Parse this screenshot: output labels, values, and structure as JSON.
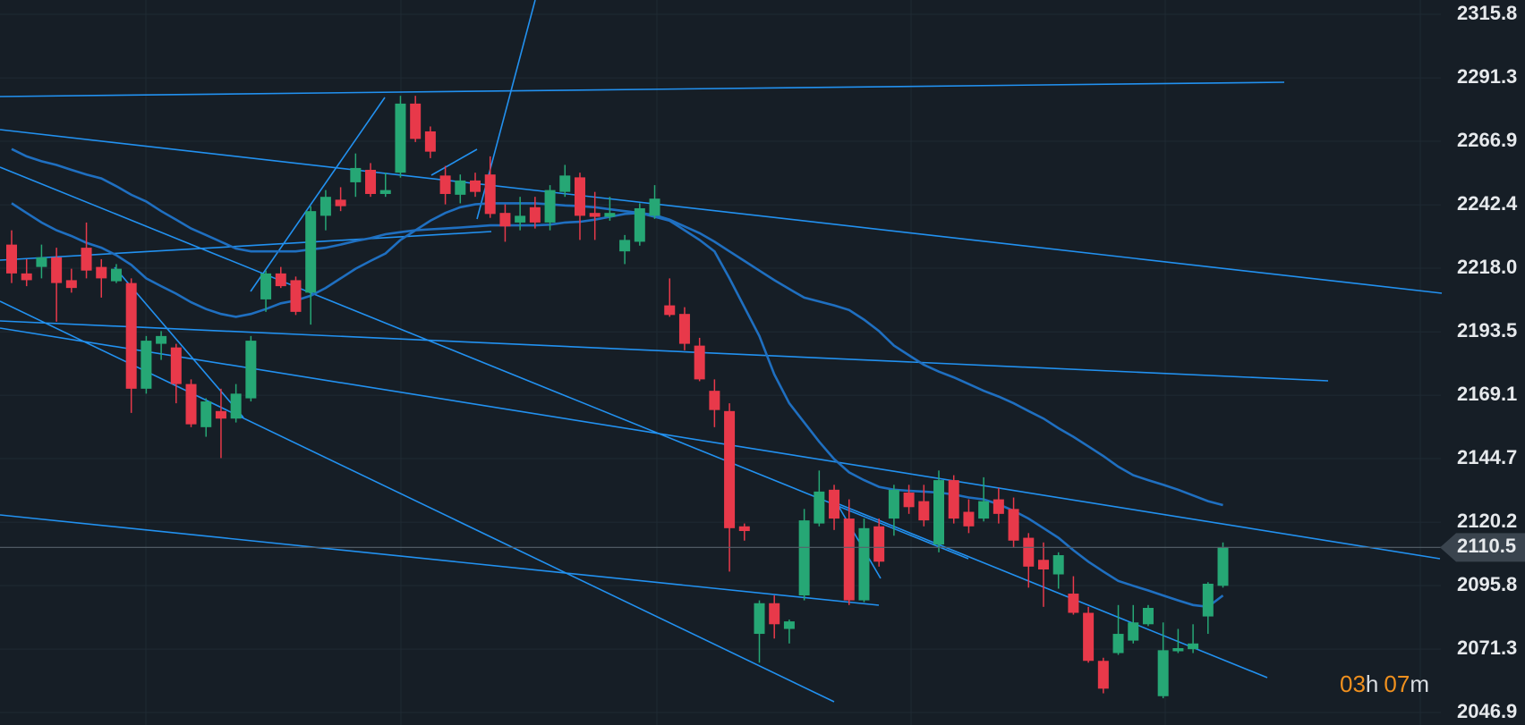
{
  "chart_data": {
    "type": "candlestick",
    "open": [
      2227.1,
      2216.0,
      2218.5,
      2222.2,
      2213.4,
      2225.9,
      2218.5,
      2213.0,
      2212.3,
      2171.6,
      2188.9,
      2187.5,
      2173.4,
      2156.8,
      2163.0,
      2160.1,
      2167.9,
      2206.0,
      2216.0,
      2213.4,
      2208.6,
      2238.2,
      2244.4,
      2251.1,
      2255.9,
      2246.6,
      2254.8,
      2281.4,
      2270.7,
      2253.7,
      2246.3,
      2251.8,
      2254.1,
      2239.3,
      2235.6,
      2241.5,
      2235.6,
      2247.4,
      2253.0,
      2239.3,
      2237.8,
      2224.5,
      2228.2,
      2238.2,
      2203.7,
      2200.4,
      2188.2,
      2170.8,
      2163.0,
      2118.6,
      2077.2,
      2089.0,
      2079.1,
      2092.0,
      2119.7,
      2132.7,
      2121.6,
      2090.1,
      2118.6,
      2121.6,
      2131.6,
      2128.3,
      2111.6,
      2136.4,
      2124.2,
      2121.6,
      2129.0,
      2125.3,
      2114.2,
      2105.7,
      2100.1,
      2092.7,
      2085.3,
      2066.8,
      2069.8,
      2074.6,
      2080.9,
      2053.2,
      2070.5,
      2071.3,
      2083.9,
      2095.7
    ],
    "high": [
      2232.6,
      2221.5,
      2227.1,
      2225.9,
      2217.8,
      2235.6,
      2221.5,
      2219.6,
      2214.1,
      2191.9,
      2193.8,
      2188.9,
      2175.2,
      2167.9,
      2171.6,
      2173.4,
      2191.9,
      2217.1,
      2218.5,
      2214.8,
      2241.9,
      2248.1,
      2249.2,
      2262.2,
      2258.5,
      2254.8,
      2284.4,
      2284.4,
      2272.6,
      2257.4,
      2254.1,
      2254.8,
      2261.1,
      2242.6,
      2245.5,
      2245.5,
      2250.0,
      2257.8,
      2254.8,
      2247.4,
      2245.5,
      2230.8,
      2243.0,
      2250.0,
      2214.1,
      2203.0,
      2191.2,
      2175.2,
      2166.0,
      2119.7,
      2090.1,
      2092.0,
      2082.7,
      2125.3,
      2140.1,
      2134.6,
      2129.0,
      2121.6,
      2121.6,
      2134.6,
      2134.6,
      2134.6,
      2140.1,
      2138.3,
      2129.0,
      2137.5,
      2133.4,
      2129.7,
      2116.0,
      2112.4,
      2108.6,
      2099.4,
      2087.6,
      2068.0,
      2088.3,
      2088.3,
      2088.3,
      2081.6,
      2079.1,
      2080.9,
      2097.1,
      2112.4
    ],
    "low": [
      2212.3,
      2211.1,
      2214.1,
      2197.4,
      2208.6,
      2214.1,
      2206.7,
      2212.3,
      2162.3,
      2169.7,
      2182.7,
      2166.0,
      2156.8,
      2153.1,
      2144.9,
      2158.6,
      2166.7,
      2201.2,
      2210.4,
      2200.0,
      2196.3,
      2232.6,
      2240.0,
      2245.5,
      2245.5,
      2245.5,
      2252.9,
      2266.6,
      2260.4,
      2242.6,
      2243.0,
      2245.5,
      2237.4,
      2228.2,
      2232.6,
      2233.3,
      2232.6,
      2245.5,
      2228.9,
      2228.9,
      2236.3,
      2219.6,
      2226.7,
      2237.0,
      2199.3,
      2186.4,
      2174.5,
      2156.8,
      2101.2,
      2113.1,
      2066.1,
      2075.4,
      2073.5,
      2090.1,
      2118.6,
      2117.2,
      2088.3,
      2089.4,
      2103.1,
      2115.0,
      2123.4,
      2118.6,
      2108.6,
      2119.7,
      2116.0,
      2120.5,
      2119.7,
      2110.5,
      2095.0,
      2087.6,
      2094.6,
      2084.6,
      2066.1,
      2054.3,
      2069.1,
      2073.5,
      2080.2,
      2052.4,
      2069.8,
      2069.8,
      2077.2,
      2095.0
    ],
    "close": [
      2216.0,
      2213.4,
      2222.2,
      2212.3,
      2210.4,
      2217.1,
      2214.1,
      2217.8,
      2171.6,
      2190.1,
      2191.9,
      2173.4,
      2157.9,
      2166.7,
      2160.1,
      2169.7,
      2190.1,
      2216.0,
      2211.1,
      2201.2,
      2240.0,
      2245.5,
      2241.9,
      2256.6,
      2246.6,
      2248.1,
      2281.4,
      2267.8,
      2262.9,
      2246.6,
      2251.8,
      2247.4,
      2238.9,
      2234.1,
      2238.2,
      2235.6,
      2248.1,
      2253.7,
      2238.2,
      2237.8,
      2239.3,
      2228.9,
      2241.1,
      2244.8,
      2200.0,
      2188.9,
      2175.2,
      2163.4,
      2117.9,
      2116.8,
      2089.0,
      2080.9,
      2082.0,
      2120.9,
      2132.0,
      2121.6,
      2090.1,
      2117.9,
      2105.0,
      2132.7,
      2126.0,
      2120.9,
      2136.4,
      2121.6,
      2118.6,
      2128.3,
      2123.4,
      2113.1,
      2103.1,
      2102.0,
      2107.5,
      2085.3,
      2066.8,
      2056.1,
      2077.2,
      2081.6,
      2087.2,
      2070.9,
      2071.7,
      2073.5,
      2096.5,
      2110.5
    ],
    "up_color": "#26a775",
    "down_color": "#e8394a",
    "overlays": [
      {
        "color": "#1f6fc0",
        "values": [
          2263.9,
          2261.1,
          2259.2,
          2257.8,
          2255.9,
          2254.1,
          2252.6,
          2249.6,
          2246.3,
          2243.7,
          2240.0,
          2236.7,
          2233.3,
          2230.8,
          2228.2,
          2225.6,
          2224.5,
          2224.5,
          2224.5,
          2224.5,
          2225.2,
          2225.9,
          2227.1,
          2228.5,
          2229.6,
          2231.1,
          2231.9,
          2232.6,
          2233.0,
          2233.3,
          2233.7,
          2234.1,
          2234.5,
          2234.5,
          2234.5,
          2234.5,
          2234.8,
          2235.6,
          2235.9,
          2236.7,
          2237.8,
          2238.9,
          2239.3,
          2238.5,
          2236.7,
          2234.1,
          2231.5,
          2228.2,
          2224.5,
          2220.8,
          2217.1,
          2213.4,
          2210.0,
          2206.7,
          2205.2,
          2203.7,
          2201.9,
          2198.2,
          2193.8,
          2188.2,
          2184.5,
          2180.8,
          2178.2,
          2176.0,
          2173.4,
          2170.8,
          2168.6,
          2166.0,
          2163.0,
          2160.1,
          2156.4,
          2153.1,
          2149.4,
          2145.7,
          2141.6,
          2138.3,
          2136.4,
          2134.6,
          2132.7,
          2130.5,
          2128.3,
          2126.8
        ]
      },
      {
        "color": "#1f6fc0",
        "values": [
          2243.0,
          2239.3,
          2235.6,
          2232.6,
          2230.4,
          2227.8,
          2225.9,
          2223.0,
          2219.3,
          2214.1,
          2211.1,
          2208.2,
          2204.9,
          2202.3,
          2200.4,
          2199.3,
          2200.4,
          2202.3,
          2204.5,
          2205.6,
          2207.4,
          2210.4,
          2214.1,
          2217.8,
          2220.8,
          2223.7,
          2228.9,
          2232.6,
          2236.3,
          2239.3,
          2241.5,
          2242.6,
          2243.0,
          2243.0,
          2243.0,
          2243.0,
          2242.6,
          2242.2,
          2241.9,
          2241.5,
          2240.7,
          2240.0,
          2239.3,
          2237.8,
          2236.3,
          2232.6,
          2228.9,
          2224.5,
          2214.1,
          2203.0,
          2191.9,
          2177.1,
          2166.0,
          2158.6,
          2151.2,
          2144.5,
          2139.4,
          2136.4,
          2133.8,
          2132.7,
          2132.3,
          2132.0,
          2131.6,
          2130.9,
          2129.7,
          2129.0,
          2127.1,
          2124.6,
          2121.6,
          2117.9,
          2114.2,
          2109.4,
          2105.0,
          2101.2,
          2097.6,
          2095.7,
          2093.9,
          2092.0,
          2090.1,
          2088.3,
          2087.6,
          2092.0
        ]
      }
    ],
    "ylim": [
      2042.1,
      2321.3
    ],
    "yticks": [
      2315.8,
      2291.3,
      2266.9,
      2242.4,
      {
        "value": 2218,
        "label": "2218.0"
      },
      2193.5,
      2169.1,
      2144.7,
      2120.2,
      2095.8,
      2071.3,
      2046.9
    ],
    "grid": true,
    "last_price": 2110.5
  },
  "countdown": [
    "03",
    "h",
    "07",
    "m"
  ]
}
